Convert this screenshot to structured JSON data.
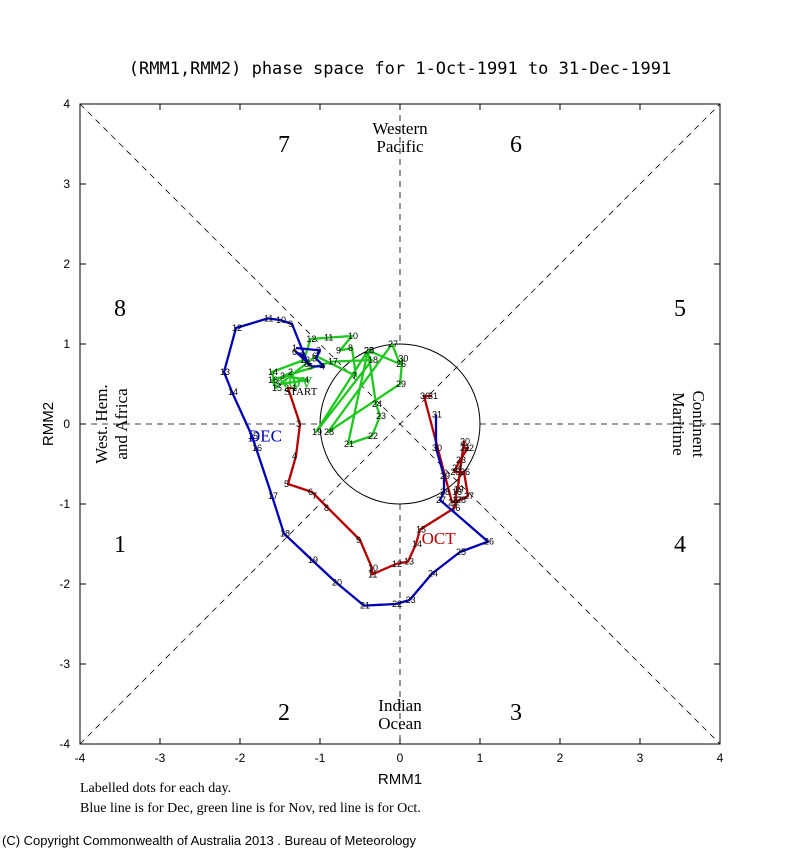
{
  "chart_data": {
    "type": "line",
    "title": "(RMM1,RMM2) phase space for  1-Oct-1991 to 31-Dec-1991",
    "xlabel": "RMM1",
    "ylabel": "RMM2",
    "xlim": [
      -4,
      4
    ],
    "ylim": [
      -4,
      4
    ],
    "x_ticks": [
      "-4",
      "-3",
      "-2",
      "-1",
      "0",
      "1",
      "2",
      "3",
      "4"
    ],
    "y_ticks": [
      "-4",
      "-3",
      "-2",
      "-1",
      "0",
      "1",
      "2",
      "3",
      "4"
    ],
    "unit_circle_radius": 1,
    "phases": [
      "1",
      "2",
      "3",
      "4",
      "5",
      "6",
      "7",
      "8"
    ],
    "regions": {
      "top": [
        "Western",
        "Pacific"
      ],
      "bottom": [
        "Indian",
        "Ocean"
      ],
      "left": [
        "West. Hem.",
        "and Africa"
      ],
      "right": [
        "Maritime",
        "Continent"
      ]
    },
    "start_label": "START",
    "series": [
      {
        "name": "OCT",
        "color": "#b40000",
        "points": [
          [
            -1.3,
            0.45,
            "1"
          ],
          [
            -1.4,
            0.45,
            "2"
          ],
          [
            -1.25,
            0.0,
            "3"
          ],
          [
            -1.3,
            -0.4,
            "4"
          ],
          [
            -1.4,
            -0.75,
            "5"
          ],
          [
            -1.1,
            -0.85,
            "6"
          ],
          [
            -1.05,
            -0.9,
            "7"
          ],
          [
            -0.9,
            -1.05,
            "8"
          ],
          [
            -0.5,
            -1.45,
            "9"
          ],
          [
            -0.35,
            -1.8,
            "10"
          ],
          [
            -0.35,
            -1.88,
            "11"
          ],
          [
            -0.05,
            -1.75,
            "12"
          ],
          [
            0.1,
            -1.72,
            "13"
          ],
          [
            0.2,
            -1.5,
            "14"
          ],
          [
            0.25,
            -1.32,
            "15"
          ],
          [
            0.68,
            -1.05,
            "16"
          ],
          [
            0.7,
            -0.95,
            "17"
          ],
          [
            0.7,
            -0.85,
            "18"
          ],
          [
            0.72,
            -0.82,
            "19"
          ],
          [
            0.8,
            -0.22,
            "20"
          ],
          [
            0.8,
            -0.3,
            "21"
          ],
          [
            0.85,
            -0.3,
            "22"
          ],
          [
            0.75,
            -0.45,
            "23"
          ],
          [
            0.7,
            -0.55,
            "24"
          ],
          [
            0.68,
            -0.6,
            "25"
          ],
          [
            0.8,
            -0.6,
            "26"
          ],
          [
            0.85,
            -0.9,
            "27"
          ],
          [
            0.75,
            -0.95,
            "28"
          ],
          [
            0.65,
            -0.98,
            "29"
          ],
          [
            0.3,
            0.35,
            "30"
          ],
          [
            0.4,
            0.35,
            "31"
          ]
        ]
      },
      {
        "name": "NOV",
        "color": "#1ec81e",
        "points": [
          [
            -1.3,
            0.45,
            "1"
          ],
          [
            -1.35,
            0.65,
            "2"
          ],
          [
            -1.45,
            0.6,
            "3"
          ],
          [
            -1.15,
            0.55,
            "4"
          ],
          [
            -1.5,
            0.5,
            "5"
          ],
          [
            -1.05,
            0.85,
            "6"
          ],
          [
            -0.55,
            0.6,
            "7"
          ],
          [
            -0.6,
            0.95,
            "8"
          ],
          [
            -0.75,
            0.92,
            "9"
          ],
          [
            -0.6,
            1.1,
            "10"
          ],
          [
            -0.9,
            1.08,
            "11"
          ],
          [
            -1.12,
            1.06,
            "12"
          ],
          [
            -1.2,
            0.8,
            "13"
          ],
          [
            -1.6,
            0.65,
            "14"
          ],
          [
            -1.55,
            0.45,
            "15"
          ],
          [
            -1.6,
            0.55,
            "16"
          ],
          [
            -0.85,
            0.78,
            "17"
          ],
          [
            -0.35,
            0.8,
            "18"
          ],
          [
            -1.05,
            -0.1,
            "19"
          ],
          [
            -0.4,
            0.92,
            "20"
          ],
          [
            -0.65,
            -0.25,
            "21"
          ],
          [
            -0.35,
            -0.15,
            "22"
          ],
          [
            -0.25,
            0.1,
            "23"
          ],
          [
            -0.3,
            0.25,
            "24"
          ],
          [
            -0.4,
            0.92,
            "25"
          ],
          [
            0.0,
            0.75,
            "26"
          ],
          [
            -0.1,
            1.0,
            "27"
          ],
          [
            -0.9,
            -0.1,
            "28"
          ],
          [
            0.0,
            0.5,
            "29"
          ],
          [
            0.03,
            0.82,
            "30"
          ]
        ]
      },
      {
        "name": "DEC",
        "color": "#0000b4",
        "points": [
          [
            -1.3,
            0.95,
            "1"
          ],
          [
            -1.0,
            0.92,
            "2"
          ],
          [
            -1.05,
            0.82,
            "3"
          ],
          [
            -0.95,
            0.72,
            "4"
          ],
          [
            -1.1,
            0.72,
            "5"
          ],
          [
            -1.3,
            0.9,
            "6"
          ],
          [
            -1.2,
            0.85,
            "7"
          ],
          [
            -1.15,
            0.75,
            "8"
          ],
          [
            -1.35,
            1.25,
            "9"
          ],
          [
            -1.5,
            1.3,
            "10"
          ],
          [
            -1.65,
            1.32,
            "11"
          ],
          [
            -2.05,
            1.2,
            "12"
          ],
          [
            -2.2,
            0.65,
            "13"
          ],
          [
            -2.1,
            0.4,
            "14"
          ],
          [
            -1.85,
            -0.15,
            "15"
          ],
          [
            -1.8,
            -0.3,
            "16"
          ],
          [
            -1.6,
            -0.9,
            "17"
          ],
          [
            -1.45,
            -1.37,
            "18"
          ],
          [
            -1.1,
            -1.7,
            "19"
          ],
          [
            -0.8,
            -1.98,
            "20"
          ],
          [
            -0.45,
            -2.27,
            "21"
          ],
          [
            -0.05,
            -2.25,
            "22"
          ],
          [
            0.12,
            -2.2,
            "23"
          ],
          [
            0.4,
            -1.87,
            "24"
          ],
          [
            0.75,
            -1.6,
            "25"
          ],
          [
            1.1,
            -1.47,
            "26"
          ],
          [
            0.5,
            -0.95,
            "27"
          ],
          [
            0.55,
            -0.85,
            "28"
          ],
          [
            0.55,
            -0.65,
            "29"
          ],
          [
            0.45,
            -0.3,
            "30"
          ],
          [
            0.45,
            0.12,
            "31"
          ]
        ]
      }
    ]
  },
  "footer": {
    "note1": "Labelled dots for each day.",
    "note2": "Blue line is for Dec, green line is for Nov, red line is for Oct.",
    "copyright": "(C) Copyright Commonwealth of Australia 2013 . Bureau of Meteorology"
  }
}
